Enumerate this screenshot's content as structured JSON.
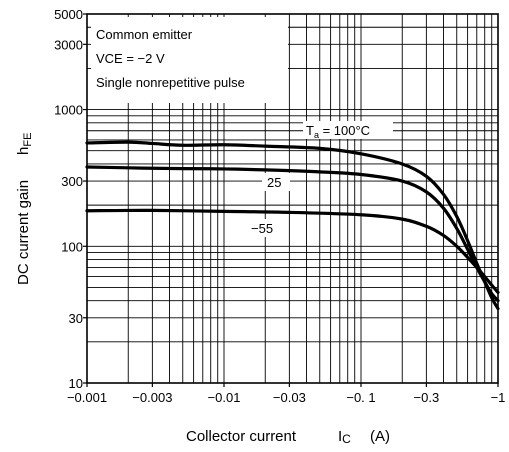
{
  "chart_data": {
    "type": "line",
    "title": "",
    "xlabel": "Collector current",
    "xlabel_symbol": "I",
    "xlabel_subscript": "C",
    "xlabel_unit": "(A)",
    "ylabel": "DC current gain",
    "ylabel_symbol": "h",
    "ylabel_subscript": "FE",
    "x_scale": "log",
    "y_scale": "log",
    "xlim": [
      0.001,
      1
    ],
    "ylim": [
      10,
      5000
    ],
    "grid": true,
    "x_ticks": [
      {
        "value": 0.001,
        "label": "−0.001"
      },
      {
        "value": 0.003,
        "label": "−0.003"
      },
      {
        "value": 0.01,
        "label": "−0.01"
      },
      {
        "value": 0.03,
        "label": "−0.03"
      },
      {
        "value": 0.1,
        "label": "−0. 1"
      },
      {
        "value": 0.3,
        "label": "−0.3"
      },
      {
        "value": 1,
        "label": "−1"
      }
    ],
    "y_ticks": [
      {
        "value": 10,
        "label": "10"
      },
      {
        "value": 30,
        "label": "30"
      },
      {
        "value": 100,
        "label": "100"
      },
      {
        "value": 300,
        "label": "300"
      },
      {
        "value": 1000,
        "label": "1000"
      },
      {
        "value": 3000,
        "label": "3000"
      },
      {
        "value": 5000,
        "label": "5000"
      }
    ],
    "annotations": [
      "Common emitter",
      "VCE = −2 V",
      "Single nonrepetitive pulse"
    ],
    "series": [
      {
        "label_prefix": "T",
        "label_subscript": "a",
        "label_rest": " = 100°C",
        "x": [
          0.001,
          0.002,
          0.003,
          0.005,
          0.01,
          0.02,
          0.05,
          0.1,
          0.2,
          0.3,
          0.4,
          0.5,
          0.6,
          0.7,
          0.8,
          0.9,
          1.0
        ],
        "y": [
          570,
          578,
          565,
          548,
          553,
          540,
          520,
          475,
          400,
          325,
          240,
          165,
          110,
          75,
          55,
          42,
          35
        ]
      },
      {
        "label_text": "25",
        "x": [
          0.001,
          0.002,
          0.003,
          0.005,
          0.01,
          0.02,
          0.05,
          0.1,
          0.2,
          0.3,
          0.4,
          0.5,
          0.6,
          0.7,
          0.8,
          0.9,
          1.0
        ],
        "y": [
          380,
          375,
          372,
          370,
          368,
          362,
          350,
          335,
          300,
          250,
          190,
          135,
          95,
          70,
          55,
          45,
          40
        ]
      },
      {
        "label_text": "−55",
        "x": [
          0.001,
          0.003,
          0.01,
          0.03,
          0.1,
          0.2,
          0.3,
          0.4,
          0.5,
          0.6,
          0.7,
          0.8,
          0.9,
          1.0
        ],
        "y": [
          182,
          183,
          180,
          177,
          170,
          158,
          140,
          120,
          100,
          83,
          70,
          60,
          52,
          46
        ]
      }
    ]
  }
}
